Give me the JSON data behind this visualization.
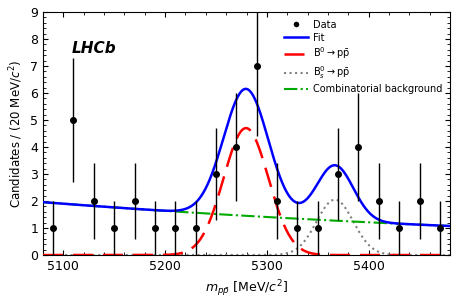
{
  "title": "",
  "xlabel": "m_{p\\bar{p}} [MeV/c^{2}]",
  "ylabel": "Candidates / (20 MeV/c^{2})",
  "xlim": [
    5080,
    5480
  ],
  "ylim": [
    0,
    9
  ],
  "yticks": [
    0,
    1,
    2,
    3,
    4,
    5,
    6,
    7,
    8,
    9
  ],
  "xticks": [
    5100,
    5200,
    5300,
    5400
  ],
  "data_x": [
    5090,
    5110,
    5130,
    5150,
    5170,
    5190,
    5210,
    5230,
    5250,
    5270,
    5290,
    5310,
    5330,
    5350,
    5370,
    5390,
    5410,
    5430,
    5450,
    5470
  ],
  "data_y": [
    1.0,
    5.0,
    2.0,
    1.0,
    2.0,
    1.0,
    1.0,
    1.0,
    3.0,
    4.0,
    7.0,
    2.0,
    1.0,
    1.0,
    3.0,
    4.0,
    2.0,
    1.0,
    2.0,
    1.0
  ],
  "data_yerr": [
    1.0,
    2.3,
    1.4,
    1.0,
    1.4,
    1.0,
    1.0,
    1.0,
    1.7,
    2.0,
    2.6,
    1.4,
    1.0,
    1.0,
    1.7,
    2.0,
    1.4,
    1.0,
    1.4,
    1.0
  ],
  "B0_peak": 5279.5,
  "B0_sigma": 22.0,
  "B0_amp": 4.7,
  "Bs_peak": 5366.9,
  "Bs_sigma": 18.0,
  "Bs_amp": 2.05,
  "bkg_a": 1.9,
  "bkg_b": -0.0015,
  "fit_color": "#0000ff",
  "B0_color": "#ff0000",
  "Bs_color": "#808080",
  "bkg_color": "#00aa00",
  "label_lhcb": "LHCb",
  "legend_data": "Data",
  "legend_fit": "Fit",
  "legend_bkg": "Combinatorial background"
}
